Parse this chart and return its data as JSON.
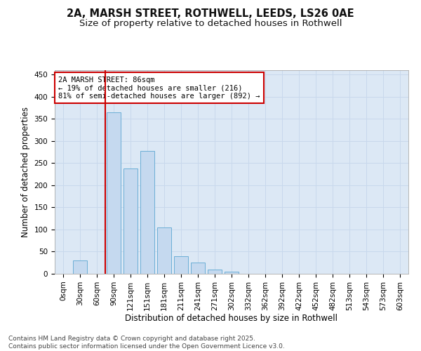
{
  "title_line1": "2A, MARSH STREET, ROTHWELL, LEEDS, LS26 0AE",
  "title_line2": "Size of property relative to detached houses in Rothwell",
  "xlabel": "Distribution of detached houses by size in Rothwell",
  "ylabel": "Number of detached properties",
  "categories": [
    "0sqm",
    "30sqm",
    "60sqm",
    "90sqm",
    "121sqm",
    "151sqm",
    "181sqm",
    "211sqm",
    "241sqm",
    "271sqm",
    "302sqm",
    "332sqm",
    "362sqm",
    "392sqm",
    "422sqm",
    "452sqm",
    "482sqm",
    "513sqm",
    "543sqm",
    "573sqm",
    "603sqm"
  ],
  "values": [
    0,
    30,
    0,
    365,
    238,
    277,
    105,
    40,
    25,
    10,
    5,
    0,
    0,
    0,
    0,
    0,
    0,
    0,
    0,
    0,
    0
  ],
  "bar_color": "#c5d9ef",
  "bar_edge_color": "#6baed6",
  "grid_color": "#c8d8ec",
  "background_color": "#dce8f5",
  "vline_color": "#cc0000",
  "annotation_text": "2A MARSH STREET: 86sqm\n← 19% of detached houses are smaller (216)\n81% of semi-detached houses are larger (892) →",
  "annotation_box_edgecolor": "#cc0000",
  "ylim": [
    0,
    460
  ],
  "yticks": [
    0,
    50,
    100,
    150,
    200,
    250,
    300,
    350,
    400,
    450
  ],
  "footnote": "Contains HM Land Registry data © Crown copyright and database right 2025.\nContains public sector information licensed under the Open Government Licence v3.0.",
  "title_fontsize": 10.5,
  "subtitle_fontsize": 9.5,
  "axis_label_fontsize": 8.5,
  "tick_fontsize": 7.5,
  "footnote_fontsize": 6.5
}
